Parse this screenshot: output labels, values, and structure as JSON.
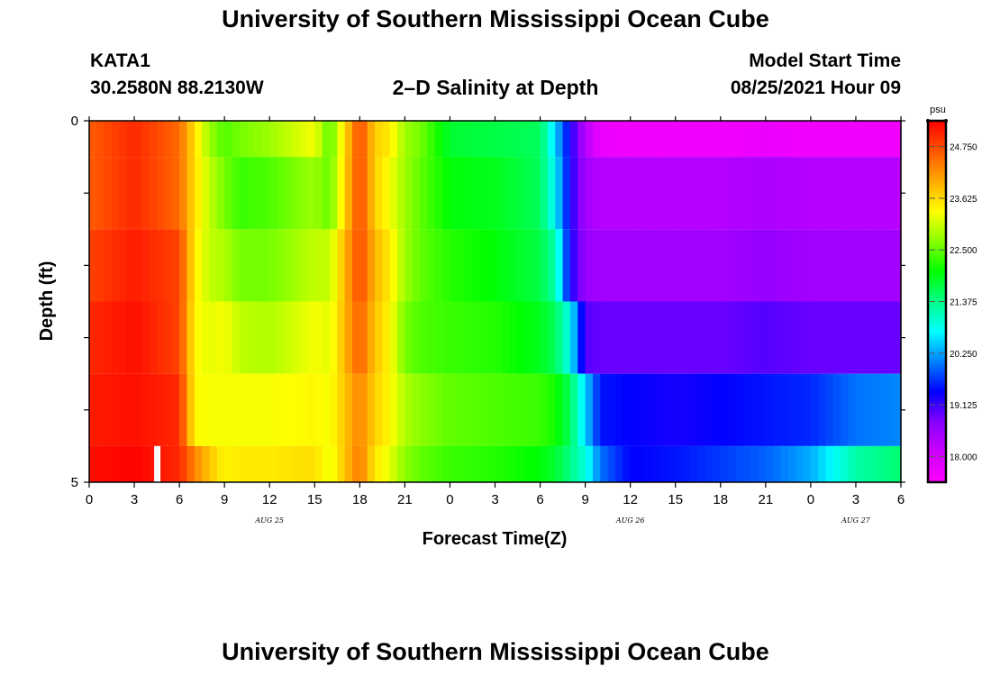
{
  "header": {
    "title": "University of Southern Mississippi Ocean Cube",
    "station": "KATA1",
    "location": "30.2580N  88.2130W",
    "subtitle": "2–D Salinity at Depth",
    "model_start_label": "Model Start Time",
    "model_start_value": "08/25/2021 Hour 09"
  },
  "footer": {
    "title": "University of Southern Mississippi Ocean Cube"
  },
  "chart_data": {
    "type": "heatmap",
    "title": "2–D Salinity at Depth",
    "xlabel": "Forecast Time(Z)",
    "ylabel": "Depth (ft)",
    "units": "psu",
    "x_tick_labels": [
      "0",
      "3",
      "6",
      "9",
      "12",
      "15",
      "18",
      "21",
      "0",
      "3",
      "6",
      "9",
      "12",
      "15",
      "18",
      "21",
      "0",
      "3",
      "6"
    ],
    "x_range_hours": [
      0,
      54
    ],
    "date_labels": [
      {
        "label": "AUG 25",
        "hour": 12
      },
      {
        "label": "AUG 26",
        "hour": 36
      },
      {
        "label": "AUG 27",
        "hour": 51
      }
    ],
    "y_tick_labels": [
      "0",
      "5"
    ],
    "y_range": [
      0,
      5
    ],
    "y_minor_ticks": 4,
    "colorbar": {
      "range": [
        17.4375,
        25.3125
      ],
      "tick_labels": [
        "24.750",
        "23.625",
        "22.500",
        "21.375",
        "20.250",
        "19.125",
        "18.000"
      ],
      "tick_values": [
        24.75,
        23.625,
        22.5,
        21.375,
        20.25,
        19.125,
        18.0
      ],
      "colors": [
        "#ff00ff",
        "#cc00ff",
        "#8800ff",
        "#0000ff",
        "#0080ff",
        "#00ffff",
        "#00ff88",
        "#00ff00",
        "#88ff00",
        "#ffff00",
        "#ffaa00",
        "#ff5500",
        "#ff0000"
      ]
    },
    "marker": {
      "hour": 4.5,
      "depth_from": 4.5,
      "depth_to": 5
    },
    "hours": [
      0,
      3,
      6,
      7,
      8,
      9,
      10,
      12,
      15,
      16,
      18,
      19,
      20,
      21,
      22,
      24,
      27,
      30,
      31,
      32,
      33,
      34,
      36,
      39,
      42,
      45,
      48,
      51,
      54
    ],
    "layers": [
      {
        "depth": [
          0,
          0.5
        ],
        "salinity": [
          24.6,
          25.0,
          24.5,
          23.6,
          22.8,
          22.4,
          22.6,
          22.8,
          23.3,
          22.4,
          24.8,
          23.7,
          23.5,
          22.8,
          22.6,
          21.8,
          21.7,
          21.6,
          20.5,
          19.3,
          18.3,
          17.7,
          17.6,
          17.6,
          17.6,
          17.7,
          17.6,
          17.6,
          17.6
        ]
      },
      {
        "depth": [
          0.5,
          1.5
        ],
        "salinity": [
          24.6,
          25.0,
          24.5,
          23.6,
          23.0,
          22.6,
          22.3,
          22.4,
          22.8,
          22.5,
          24.8,
          23.7,
          23.3,
          22.8,
          22.5,
          22.0,
          21.9,
          21.6,
          20.7,
          19.3,
          18.5,
          18.3,
          18.3,
          18.3,
          18.3,
          18.4,
          18.3,
          18.3,
          18.3
        ]
      },
      {
        "depth": [
          1.5,
          2.5
        ],
        "salinity": [
          24.8,
          25.1,
          24.8,
          23.5,
          23.0,
          22.9,
          22.6,
          22.6,
          23.0,
          23.0,
          24.8,
          23.9,
          23.5,
          22.8,
          22.5,
          22.2,
          22.0,
          21.7,
          21.2,
          19.3,
          18.6,
          18.5,
          18.5,
          18.5,
          18.5,
          18.6,
          18.5,
          18.5,
          18.5
        ]
      },
      {
        "depth": [
          2.5,
          3.5
        ],
        "salinity": [
          25.0,
          25.2,
          24.8,
          23.4,
          23.2,
          23.3,
          23.0,
          22.9,
          23.3,
          23.2,
          24.6,
          23.8,
          23.4,
          22.6,
          22.4,
          22.3,
          22.2,
          21.9,
          21.6,
          20.8,
          19.0,
          18.9,
          18.9,
          18.9,
          18.9,
          19.0,
          18.9,
          18.9,
          18.9
        ]
      },
      {
        "depth": [
          3.5,
          4.5
        ],
        "salinity": [
          25.1,
          25.2,
          25.0,
          23.4,
          23.3,
          23.3,
          23.3,
          23.3,
          23.4,
          23.3,
          24.3,
          23.7,
          23.4,
          22.9,
          22.7,
          22.5,
          22.4,
          22.3,
          22.1,
          21.6,
          20.5,
          19.5,
          19.4,
          19.3,
          19.4,
          19.5,
          19.6,
          20.0,
          20.1
        ]
      },
      {
        "depth": [
          4.5,
          5.0
        ],
        "salinity": [
          25.2,
          25.3,
          25.0,
          24.3,
          23.8,
          23.4,
          23.5,
          23.5,
          23.6,
          23.2,
          24.4,
          23.5,
          23.2,
          22.7,
          22.5,
          22.3,
          22.2,
          22.0,
          21.8,
          21.4,
          20.9,
          20.0,
          19.4,
          19.5,
          19.7,
          19.9,
          20.3,
          21.2,
          21.5
        ]
      }
    ]
  }
}
